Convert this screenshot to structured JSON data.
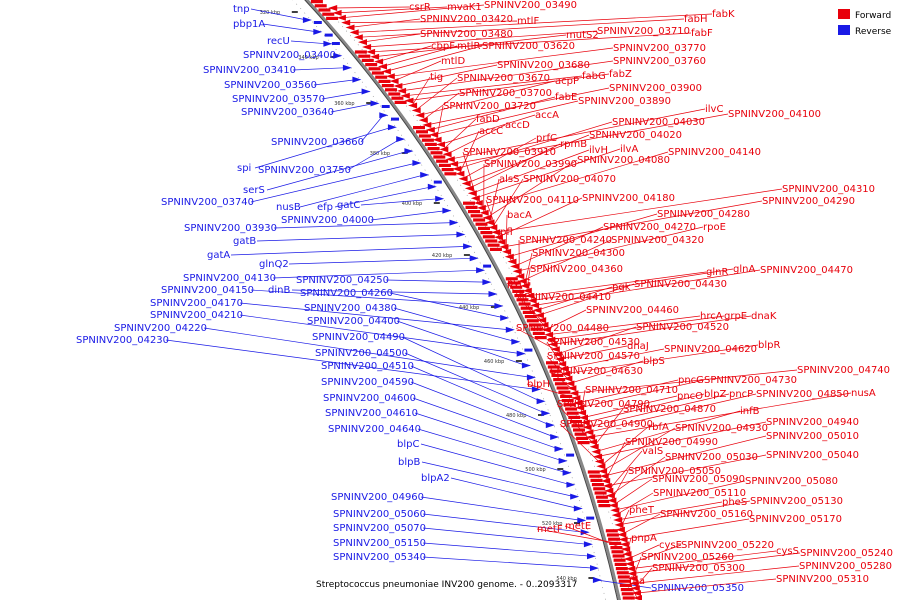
{
  "caption": "Streptococcus pneumoniae INV200 genome. - 0..2093317",
  "legend": {
    "forward": {
      "label": "Forward",
      "color": "#e8000b"
    },
    "reverse": {
      "label": "Reverse",
      "color": "#1a1ae6"
    }
  },
  "ticks": [
    "320 kbp",
    "340 kbp",
    "360 kbp",
    "380 kbp",
    "400 kbp",
    "420 kbp",
    "440 kbp",
    "460 kbp",
    "480 kbp",
    "500 kbp",
    "520 kbp",
    "540 kbp"
  ],
  "reverse_labels": [
    "tnp",
    "pbp1A",
    "recU",
    "SPNINV200_03400",
    "SPNINV200_03410",
    "SPNINV200_03560",
    "SPNINV200_03570",
    "SPNINV200_03640",
    "SPNINV200_03660",
    "spi",
    "SPNINV200_03750",
    "serS",
    "SPNINV200_03740",
    "nusB",
    "efp",
    "gatC",
    "SPNINV200_04000",
    "SPNINV200_03930",
    "gatB",
    "gatA",
    "glnQ2",
    "SPNINV200_04130",
    "SPNINV200_04250",
    "dinB",
    "SPNINV200_04150",
    "SPNINV200_04260",
    "SPNINV200_04170",
    "SPNINV200_04380",
    "SPNINV200_04210",
    "SPNINV200_04400",
    "SPNINV200_04220",
    "SPNINV200_04230",
    "SPNINV200_04490",
    "SPNINV200_04500",
    "SPNINV200_04510",
    "SPNINV200_04590",
    "SPNINV200_04600",
    "SPNINV200_04610",
    "SPNINV200_04640",
    "blpC",
    "blpB",
    "blpA2",
    "SPNINV200_04960",
    "SPNINV200_05060",
    "SPNINV200_05070",
    "SPNINV200_05150",
    "SPNINV200_05340",
    "SPNINV200_05350"
  ],
  "forward_labels": [
    "csrR",
    "mvaK1",
    "SPNINV200_03490",
    "mtlF",
    "SPNINV200_03420",
    "fabK",
    "fabH",
    "SPNINV200_03480",
    "SPNINV200_03710",
    "fabF",
    "mutS2",
    "cbpF",
    "mtlR",
    "SPNINV200_03620",
    "SPNINV200_03770",
    "mtlD",
    "SPNINV200_03680",
    "SPNINV200_03760",
    "fabG",
    "fabZ",
    "tig",
    "SPNINV200_03670",
    "acpP",
    "SPNINV200_03700",
    "SPNINV200_03900",
    "fabE",
    "SPNINV200_03890",
    "SPNINV200_03720",
    "accA",
    "fabD",
    "accD",
    "ilvC",
    "SPNINV200_04100",
    "SPNINV200_04030",
    "accC",
    "prfC",
    "SPNINV200_04020",
    "rpmB",
    "ilvH",
    "ilvA",
    "SPNINV200_03910",
    "SPNINV200_04140",
    "SPNINV200_03990",
    "SPNINV200_04080",
    "alsS",
    "SPNINV200_04070",
    "SPNINV200_04310",
    "SPNINV200_04180",
    "SPNINV200_04110",
    "SPNINV200_04290",
    "bacA",
    "SPNINV200_04280",
    "pfl",
    "SPNINV200_04270",
    "rpoE",
    "SPNINV200_04240",
    "SPNINV200_04320",
    "SPNINV200_04300",
    "SPNINV200_04360",
    "glnR",
    "glnA",
    "SPNINV200_04470",
    "pgk",
    "SPNINV200_04430",
    "pyrG",
    "SPNINV200_04410",
    "SPNINV200_04460",
    "hrcA",
    "grpE",
    "dnaK",
    "SPNINV200_04480",
    "SPNINV200_04520",
    "dnaJ",
    "SPNINV200_04530",
    "SPNINV200_04620",
    "blpR",
    "SPNINV200_04570",
    "blpS",
    "SPNINV200_04630",
    "SPNINV200_04740",
    "blpH",
    "pncG",
    "SPNINV200_04730",
    "SPNINV200_04710",
    "pncO",
    "blpZ",
    "pncP",
    "SPNINV200_04850",
    "nusA",
    "SPNINV200_04790",
    "SPNINV200_04870",
    "infB",
    "SPNINV200_04940",
    "SPNINV200_04900",
    "rbfA",
    "SPNINV200_04930",
    "SPNINV200_05010",
    "SPNINV200_04990",
    "SPNINV200_05040",
    "valS",
    "SPNINV200_05030",
    "SPNINV200_05050",
    "SPNINV200_05090",
    "SPNINV200_05080",
    "SPNINV200_05110",
    "pheS",
    "SPNINV200_05130",
    "pheT",
    "SPNINV200_05160",
    "SPNINV200_05170",
    "metF",
    "metE",
    "pnpA",
    "cysE",
    "SPNINV200_05220",
    "cysS",
    "SPNINV200_05240",
    "SPNINV200_05260",
    "SPNINV200_05280",
    "SPNINV200_05300",
    "SPNINV200_05310",
    "fba"
  ]
}
